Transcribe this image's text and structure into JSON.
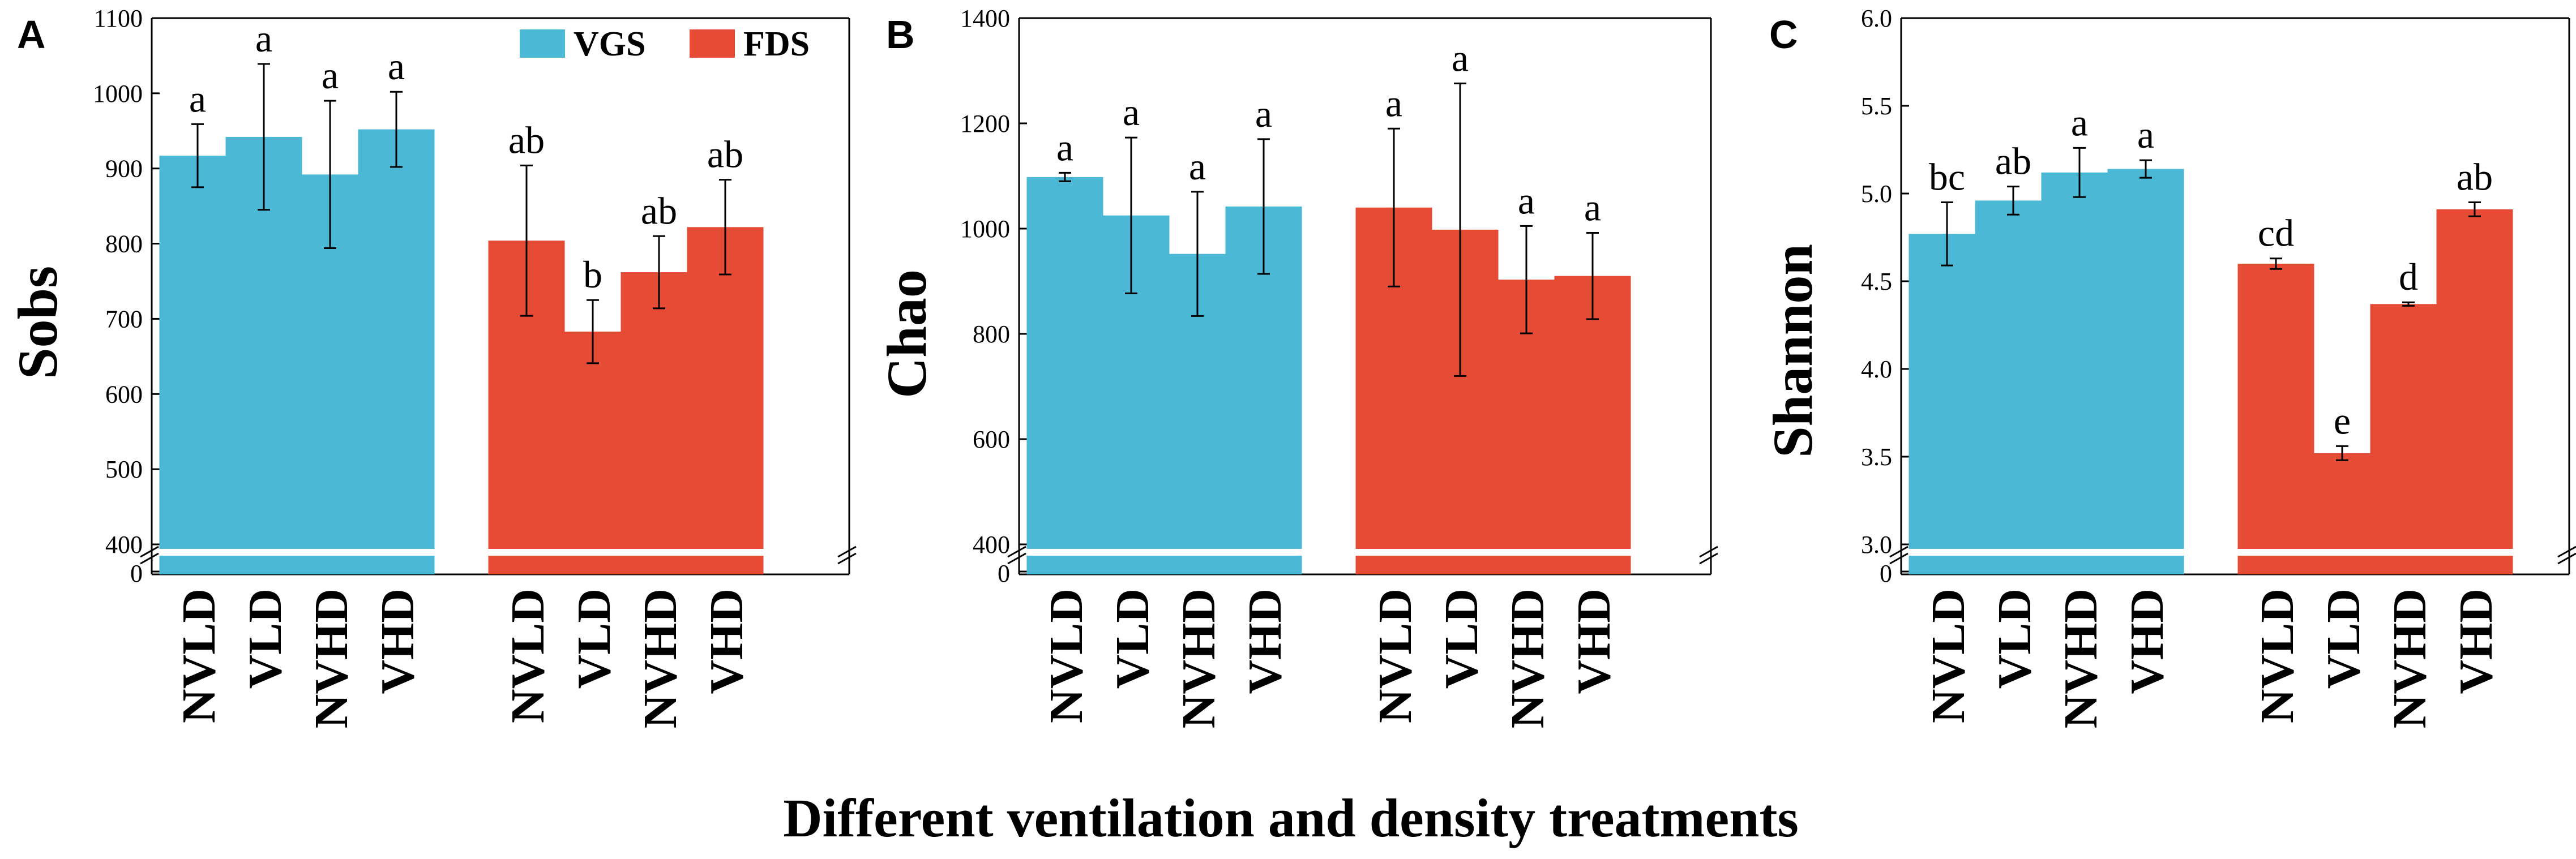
{
  "figure": {
    "xlabel": "Different ventilation and density treatments",
    "legend": [
      {
        "name": "VGS",
        "color": "#4BB8D6"
      },
      {
        "name": "FDS",
        "color": "#E64B35"
      }
    ]
  },
  "chart_data": [
    {
      "type": "bar",
      "panel": "A",
      "ylabel": "Sobs",
      "ylim": [
        400,
        1100
      ],
      "yticks": [
        400,
        500,
        600,
        700,
        800,
        900,
        1000,
        1100
      ],
      "axis_break": true,
      "break_baseline_label": "0",
      "legend": "top-right",
      "categories": [
        "NVLD",
        "VLD",
        "NVHD",
        "VHD"
      ],
      "series": [
        {
          "name": "VGS",
          "color": "#4BB8D6",
          "values": [
            917,
            942,
            892,
            952
          ],
          "errors": [
            42,
            97,
            98,
            50
          ],
          "letters": [
            "a",
            "a",
            "a",
            "a"
          ]
        },
        {
          "name": "FDS",
          "color": "#E64B35",
          "values": [
            804,
            683,
            762,
            822
          ],
          "errors": [
            100,
            42,
            48,
            63
          ],
          "letters": [
            "ab",
            "b",
            "ab",
            "ab"
          ]
        }
      ]
    },
    {
      "type": "bar",
      "panel": "B",
      "ylabel": "Chao",
      "ylim": [
        400,
        1400
      ],
      "yticks": [
        400,
        600,
        800,
        1000,
        1200,
        1400
      ],
      "axis_break": true,
      "break_baseline_label": "0",
      "categories": [
        "NVLD",
        "VLD",
        "NVHD",
        "VHD"
      ],
      "series": [
        {
          "name": "VGS",
          "color": "#4BB8D6",
          "values": [
            1098,
            1025,
            952,
            1042
          ],
          "errors": [
            8,
            148,
            118,
            128
          ],
          "letters": [
            "a",
            "a",
            "a",
            "a"
          ]
        },
        {
          "name": "FDS",
          "color": "#E64B35",
          "values": [
            1040,
            998,
            903,
            910
          ],
          "errors": [
            150,
            278,
            102,
            82
          ],
          "letters": [
            "a",
            "a",
            "a",
            "a"
          ]
        }
      ]
    },
    {
      "type": "bar",
      "panel": "C",
      "ylabel": "Shannon",
      "ylim": [
        3.0,
        6.0
      ],
      "yticks": [
        3.0,
        3.5,
        4.0,
        4.5,
        5.0,
        5.5,
        6.0
      ],
      "axis_break": true,
      "break_baseline_label": "0",
      "categories": [
        "NVLD",
        "VLD",
        "NVHD",
        "VHD"
      ],
      "series": [
        {
          "name": "VGS",
          "color": "#4BB8D6",
          "values": [
            4.77,
            4.96,
            5.12,
            5.14
          ],
          "errors": [
            0.18,
            0.08,
            0.14,
            0.05
          ],
          "letters": [
            "bc",
            "ab",
            "a",
            "a"
          ]
        },
        {
          "name": "FDS",
          "color": "#E64B35",
          "values": [
            4.6,
            3.52,
            4.37,
            4.91
          ],
          "errors": [
            0.03,
            0.04,
            0.01,
            0.04
          ],
          "letters": [
            "cd",
            "e",
            "d",
            "ab"
          ]
        }
      ]
    }
  ]
}
